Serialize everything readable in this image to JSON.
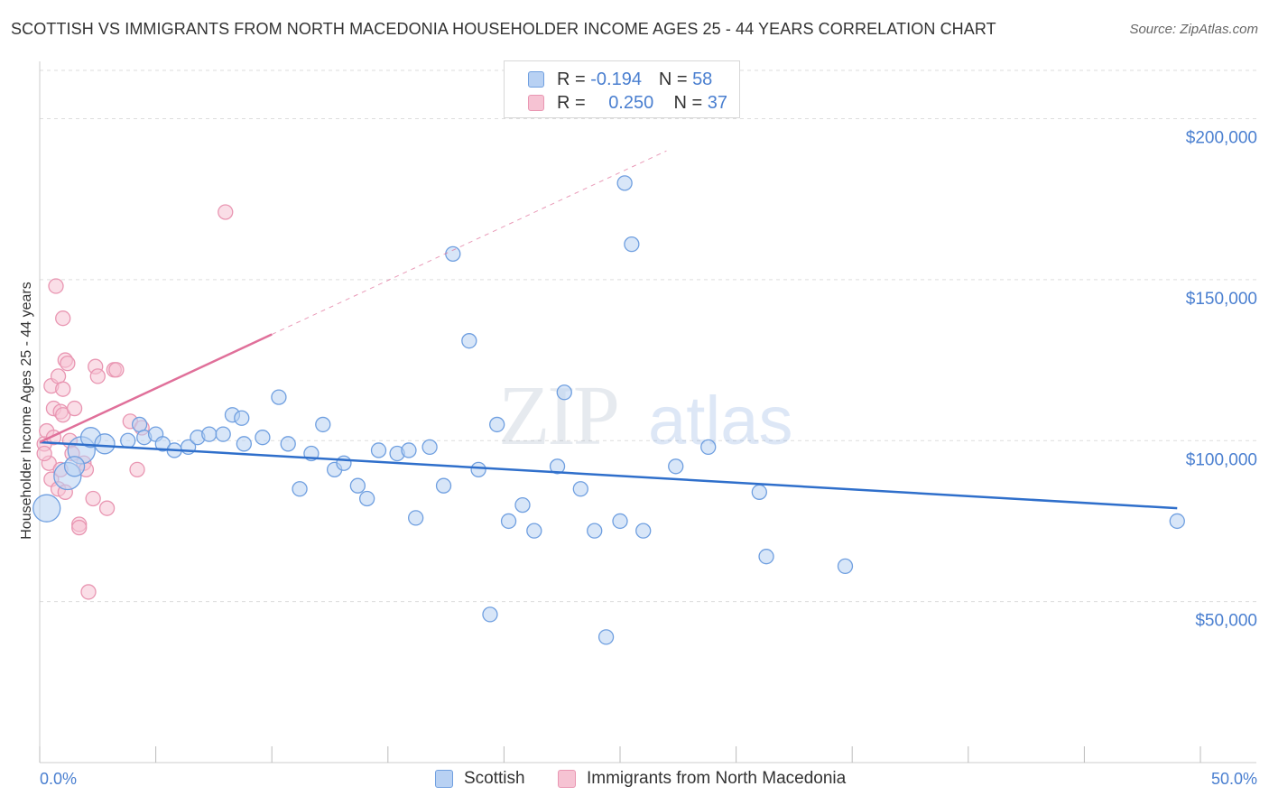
{
  "title": "SCOTTISH VS IMMIGRANTS FROM NORTH MACEDONIA HOUSEHOLDER INCOME AGES 25 - 44 YEARS CORRELATION CHART",
  "source": "Source: ZipAtlas.com",
  "watermark": {
    "zip": "ZIP",
    "atlas": "atlas"
  },
  "legend": {
    "r_label": "R =",
    "n_label": "N =",
    "rows": [
      {
        "name": "Scottish",
        "r": "-0.194",
        "n": "58"
      },
      {
        "name": "Immigrants from North Macedonia",
        "r": "0.250",
        "n": "37"
      }
    ]
  },
  "colors": {
    "scottish_fill": "#b8d1f3",
    "scottish_stroke": "#6f9fe0",
    "scottish_line": "#2f6fcb",
    "macedonia_fill": "#f6c3d3",
    "macedonia_stroke": "#e996b2",
    "macedonia_line": "#e0709a",
    "tick_text": "#4a7fd0",
    "grid": "#dddddd"
  },
  "chart_data": {
    "type": "scatter",
    "title": "SCOTTISH VS IMMIGRANTS FROM NORTH MACEDONIA HOUSEHOLDER INCOME AGES 25 - 44 YEARS CORRELATION CHART",
    "xlabel": "",
    "ylabel": "Householder Income Ages 25 - 44 years",
    "xlim": [
      0,
      50
    ],
    "ylim": [
      0,
      215000
    ],
    "x_tick_labels": [
      {
        "value": 0,
        "label": "0.0%"
      },
      {
        "value": 50,
        "label": "50.0%"
      }
    ],
    "y_ticks": [
      {
        "value": 50000,
        "label": "$50,000"
      },
      {
        "value": 100000,
        "label": "$100,000"
      },
      {
        "value": 150000,
        "label": "$150,000"
      },
      {
        "value": 200000,
        "label": "$200,000"
      }
    ],
    "series": [
      {
        "name": "Scottish",
        "trend": {
          "x0": 0.0,
          "y0": 99500,
          "x1": 49.0,
          "y1": 79000,
          "dashed_to": null
        },
        "points": [
          {
            "x": 0.3,
            "y": 79000,
            "s": "l"
          },
          {
            "x": 1.2,
            "y": 89000,
            "s": "l"
          },
          {
            "x": 1.8,
            "y": 97000,
            "s": "l"
          },
          {
            "x": 1.5,
            "y": 92000,
            "s": "m"
          },
          {
            "x": 2.2,
            "y": 101000,
            "s": "m"
          },
          {
            "x": 2.8,
            "y": 99000,
            "s": "m"
          },
          {
            "x": 3.8,
            "y": 100000
          },
          {
            "x": 4.3,
            "y": 105000
          },
          {
            "x": 4.5,
            "y": 101000
          },
          {
            "x": 5.0,
            "y": 102000
          },
          {
            "x": 5.3,
            "y": 99000
          },
          {
            "x": 5.8,
            "y": 97000
          },
          {
            "x": 6.4,
            "y": 98000
          },
          {
            "x": 6.8,
            "y": 101000
          },
          {
            "x": 7.3,
            "y": 102000
          },
          {
            "x": 7.9,
            "y": 102000
          },
          {
            "x": 8.3,
            "y": 108000
          },
          {
            "x": 8.8,
            "y": 99000
          },
          {
            "x": 8.7,
            "y": 107000
          },
          {
            "x": 9.6,
            "y": 101000
          },
          {
            "x": 10.3,
            "y": 113500
          },
          {
            "x": 10.7,
            "y": 99000
          },
          {
            "x": 11.2,
            "y": 85000
          },
          {
            "x": 11.7,
            "y": 96000
          },
          {
            "x": 12.2,
            "y": 105000
          },
          {
            "x": 12.7,
            "y": 91000
          },
          {
            "x": 13.1,
            "y": 93000
          },
          {
            "x": 13.7,
            "y": 86000
          },
          {
            "x": 14.1,
            "y": 82000
          },
          {
            "x": 14.6,
            "y": 97000
          },
          {
            "x": 15.4,
            "y": 96000
          },
          {
            "x": 15.9,
            "y": 97000
          },
          {
            "x": 16.2,
            "y": 76000
          },
          {
            "x": 16.8,
            "y": 98000
          },
          {
            "x": 17.4,
            "y": 86000
          },
          {
            "x": 17.8,
            "y": 158000
          },
          {
            "x": 18.5,
            "y": 131000
          },
          {
            "x": 18.9,
            "y": 91000
          },
          {
            "x": 19.4,
            "y": 46000
          },
          {
            "x": 19.7,
            "y": 105000
          },
          {
            "x": 20.2,
            "y": 75000
          },
          {
            "x": 20.8,
            "y": 80000
          },
          {
            "x": 21.3,
            "y": 72000
          },
          {
            "x": 22.3,
            "y": 92000
          },
          {
            "x": 22.6,
            "y": 115000
          },
          {
            "x": 23.3,
            "y": 85000
          },
          {
            "x": 23.9,
            "y": 72000
          },
          {
            "x": 24.4,
            "y": 39000
          },
          {
            "x": 25.0,
            "y": 75000
          },
          {
            "x": 25.2,
            "y": 180000
          },
          {
            "x": 25.5,
            "y": 161000
          },
          {
            "x": 26.0,
            "y": 72000
          },
          {
            "x": 27.4,
            "y": 92000
          },
          {
            "x": 28.8,
            "y": 98000
          },
          {
            "x": 31.0,
            "y": 84000
          },
          {
            "x": 31.3,
            "y": 64000
          },
          {
            "x": 34.7,
            "y": 61000
          },
          {
            "x": 49.0,
            "y": 75000
          }
        ]
      },
      {
        "name": "Immigrants from North Macedonia",
        "trend": {
          "x0": 0.0,
          "y0": 99500,
          "x1": 10.0,
          "y1": 133000,
          "dashed_to": {
            "x": 27.0,
            "y": 190000
          }
        },
        "points": [
          {
            "x": 0.2,
            "y": 99000
          },
          {
            "x": 0.3,
            "y": 103000
          },
          {
            "x": 0.4,
            "y": 93000
          },
          {
            "x": 0.2,
            "y": 96000
          },
          {
            "x": 0.5,
            "y": 88000
          },
          {
            "x": 0.6,
            "y": 101000
          },
          {
            "x": 0.8,
            "y": 85000
          },
          {
            "x": 0.9,
            "y": 91000
          },
          {
            "x": 0.5,
            "y": 117000
          },
          {
            "x": 0.6,
            "y": 110000
          },
          {
            "x": 0.7,
            "y": 148000
          },
          {
            "x": 0.8,
            "y": 120000
          },
          {
            "x": 0.9,
            "y": 109000
          },
          {
            "x": 1.0,
            "y": 138000
          },
          {
            "x": 1.0,
            "y": 116000
          },
          {
            "x": 1.1,
            "y": 125000
          },
          {
            "x": 1.0,
            "y": 108000
          },
          {
            "x": 1.1,
            "y": 84000
          },
          {
            "x": 1.2,
            "y": 124000
          },
          {
            "x": 1.3,
            "y": 100000
          },
          {
            "x": 1.4,
            "y": 96000
          },
          {
            "x": 1.5,
            "y": 110000
          },
          {
            "x": 1.7,
            "y": 74000
          },
          {
            "x": 1.7,
            "y": 73000
          },
          {
            "x": 1.9,
            "y": 93000
          },
          {
            "x": 2.0,
            "y": 91000
          },
          {
            "x": 2.1,
            "y": 53000
          },
          {
            "x": 2.3,
            "y": 82000
          },
          {
            "x": 2.4,
            "y": 123000
          },
          {
            "x": 2.5,
            "y": 120000
          },
          {
            "x": 2.9,
            "y": 79000
          },
          {
            "x": 3.2,
            "y": 122000
          },
          {
            "x": 3.3,
            "y": 122000
          },
          {
            "x": 3.9,
            "y": 106000
          },
          {
            "x": 4.2,
            "y": 91000
          },
          {
            "x": 4.4,
            "y": 104000
          },
          {
            "x": 8.0,
            "y": 171000
          }
        ]
      }
    ]
  }
}
